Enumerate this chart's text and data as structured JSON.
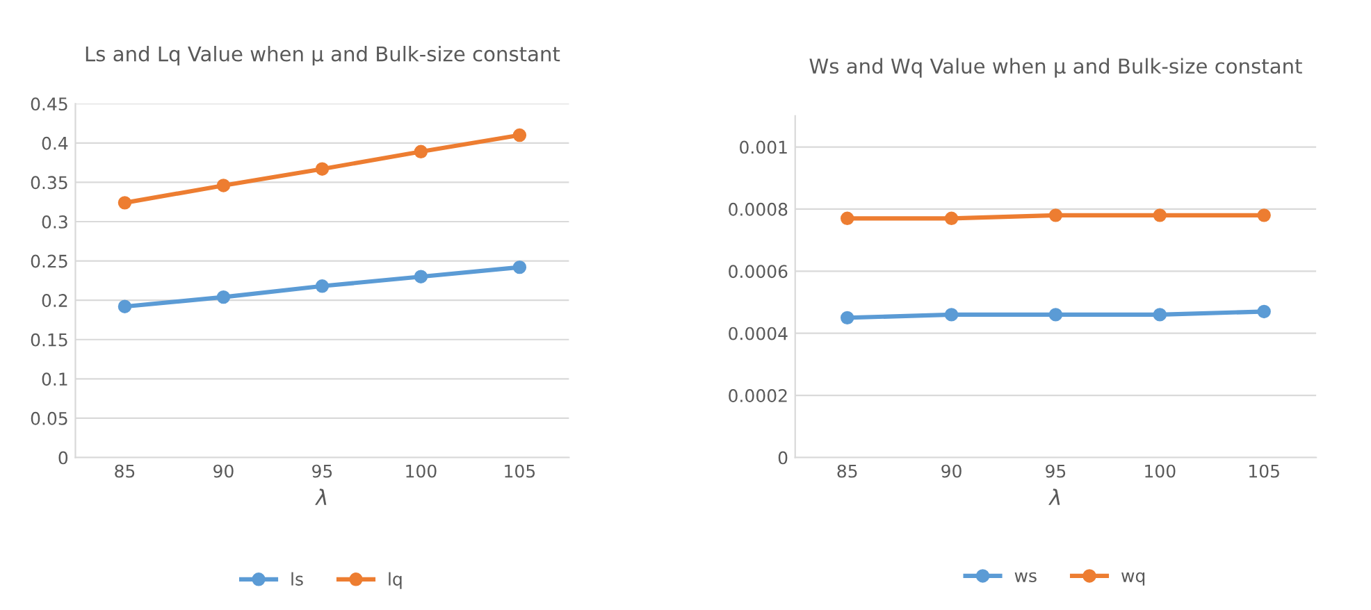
{
  "chart_data": [
    {
      "type": "line",
      "title": "Ls and Lq Value when μ and Bulk-size constant",
      "xlabel": "λ",
      "categories": [
        "85",
        "90",
        "95",
        "100",
        "105"
      ],
      "series": [
        {
          "name": "ls",
          "color": "#5b9bd5",
          "values": [
            0.192,
            0.204,
            0.218,
            0.23,
            0.242
          ]
        },
        {
          "name": "lq",
          "color": "#ed7d31",
          "values": [
            0.324,
            0.346,
            0.367,
            0.389,
            0.41
          ]
        }
      ],
      "ylim": [
        0,
        0.45
      ],
      "yticks": [
        0,
        0.05,
        0.1,
        0.15,
        0.2,
        0.25,
        0.3,
        0.35,
        0.4,
        0.45
      ],
      "grid": "y",
      "legend": "bottom",
      "marker": "circle",
      "line_style": "solid"
    },
    {
      "type": "line",
      "title": "Ws and Wq Value when μ and Bulk-size constant",
      "xlabel": "λ",
      "categories": [
        "85",
        "90",
        "95",
        "100",
        "105"
      ],
      "series": [
        {
          "name": "ws",
          "color": "#5b9bd5",
          "values": [
            0.00045,
            0.00046,
            0.00046,
            0.00046,
            0.00047
          ]
        },
        {
          "name": "wq",
          "color": "#ed7d31",
          "values": [
            0.00077,
            0.00077,
            0.00078,
            0.00078,
            0.00078
          ]
        }
      ],
      "ylim": [
        0,
        0.0011
      ],
      "yticks": [
        0,
        0.0002,
        0.0004,
        0.0006,
        0.0008,
        0.001
      ],
      "grid": "y",
      "legend": "bottom",
      "marker": "circle",
      "line_style": "solid"
    }
  ]
}
